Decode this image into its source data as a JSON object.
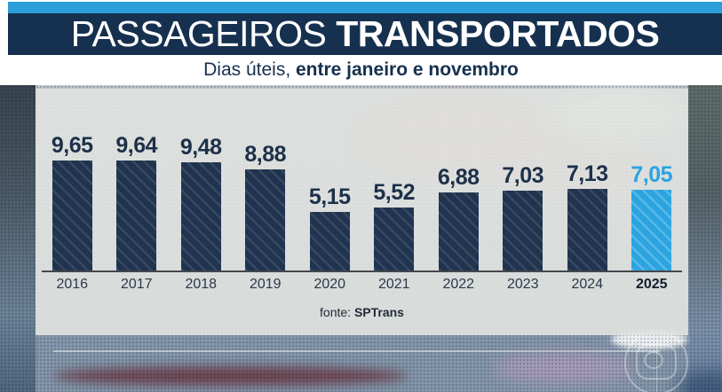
{
  "header": {
    "title_regular": "PASSAGEIROS ",
    "title_bold": "TRANSPORTADOS",
    "subtitle_regular": "Dias úteis, ",
    "subtitle_bold": "entre janeiro e novembro"
  },
  "chart_data": {
    "type": "bar",
    "title": "Passageiros transportados",
    "subtitle": "Dias úteis, entre janeiro e novembro",
    "categories": [
      "2016",
      "2017",
      "2018",
      "2019",
      "2020",
      "2021",
      "2022",
      "2023",
      "2024",
      "2025"
    ],
    "values": [
      9.65,
      9.64,
      9.48,
      8.88,
      5.15,
      5.52,
      6.88,
      7.03,
      7.13,
      7.05
    ],
    "value_labels": [
      "9,65",
      "9,64",
      "9,48",
      "8,88",
      "5,15",
      "5,52",
      "6,88",
      "7,03",
      "7,13",
      "7,05"
    ],
    "highlight_index": 9,
    "ylim": [
      0,
      10
    ],
    "grid": false,
    "legend": "none",
    "source_prefix": "fonte: ",
    "source_bold": "SPTrans",
    "colors": {
      "bar": "#20334f",
      "bar_hatch": "rgba(255,255,255,0.10)",
      "highlight_bar": "#2ba4e0",
      "highlight_hatch": "rgba(255,255,255,0.22)",
      "value_label": "#1c3049",
      "highlight_value_label": "#2aa3e2",
      "accent_strip": "#2b9ed9",
      "header_band": "#16304f"
    }
  },
  "icons": {
    "watermark": "globo-logo-icon"
  }
}
